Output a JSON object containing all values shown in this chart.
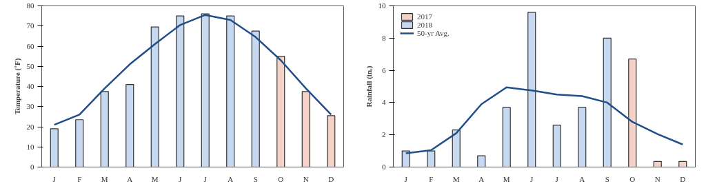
{
  "chart_data": [
    {
      "type": "bar",
      "ylabel": "Temperature (˚F)",
      "categories": [
        "J",
        "F",
        "M",
        "A",
        "M",
        "J",
        "J",
        "A",
        "S",
        "O",
        "N",
        "D"
      ],
      "series": [
        {
          "color": "#f4d2c8",
          "values": [
            null,
            null,
            null,
            null,
            null,
            null,
            null,
            null,
            null,
            55,
            37.5,
            25.5
          ]
        },
        {
          "color": "#c6d9f0",
          "values": [
            19,
            23.5,
            37.5,
            41,
            69.5,
            75,
            76,
            75,
            67.5,
            null,
            null,
            null
          ]
        },
        {
          "type": "line",
          "color": "#1f4e89",
          "values": [
            21,
            26,
            39,
            51,
            61,
            70.5,
            75.5,
            73,
            64.5,
            53,
            39,
            26
          ]
        }
      ],
      "ylim": [
        0,
        80
      ],
      "yticks": [
        0,
        10,
        20,
        30,
        40,
        50,
        60,
        70,
        80
      ],
      "grid": false,
      "legend": false
    },
    {
      "type": "bar",
      "ylabel": "Rainfall (in.)",
      "categories": [
        "J",
        "F",
        "M",
        "A",
        "M",
        "J",
        "J",
        "A",
        "S",
        "O",
        "N",
        "D"
      ],
      "series": [
        {
          "name": "2017",
          "color": "#f4d2c8",
          "values": [
            null,
            null,
            null,
            null,
            null,
            null,
            null,
            null,
            null,
            6.7,
            0.35,
            0.35
          ]
        },
        {
          "name": "2018",
          "color": "#c6d9f0",
          "values": [
            1,
            1,
            2.3,
            0.7,
            3.7,
            9.6,
            2.6,
            3.7,
            8,
            null,
            null,
            null
          ]
        },
        {
          "type": "line",
          "name": "50-yr Avg.",
          "color": "#1f4e89",
          "values": [
            0.85,
            1.05,
            2.1,
            3.9,
            4.95,
            4.75,
            4.5,
            4.4,
            4.0,
            2.8,
            2.05,
            1.4
          ]
        }
      ],
      "ylim": [
        0,
        10
      ],
      "yticks": [
        0,
        2,
        4,
        6,
        8,
        10
      ],
      "grid": false,
      "legend": "top left"
    }
  ]
}
